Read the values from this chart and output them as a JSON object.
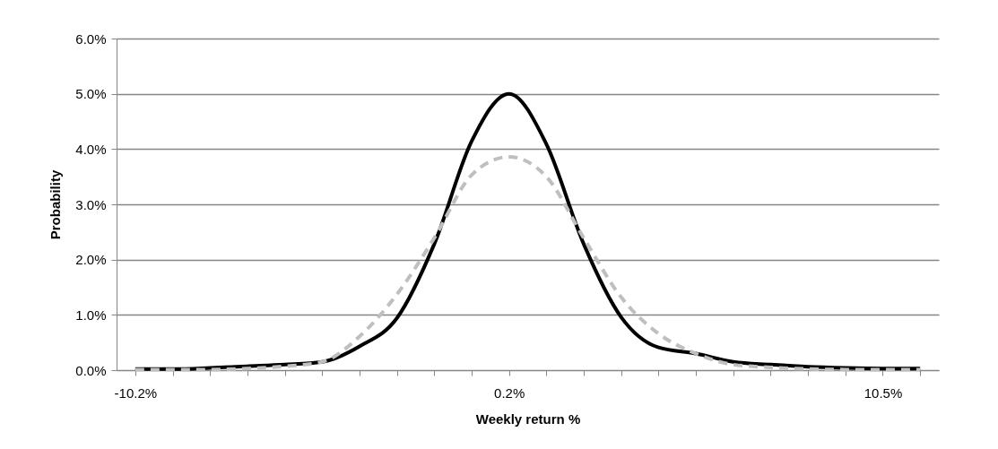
{
  "chart_data": {
    "type": "line",
    "xlabel": "Weekly return %",
    "ylabel": "Probability",
    "categories": [
      "-10.2%",
      null,
      null,
      null,
      null,
      null,
      null,
      null,
      null,
      null,
      "0.2%",
      null,
      null,
      null,
      null,
      null,
      null,
      null,
      null,
      null,
      "10.5%",
      null
    ],
    "series": [
      {
        "color": "#000000",
        "line_style": "solid",
        "values": [
          0.02,
          0.02,
          0.04,
          0.07,
          0.1,
          0.15,
          0.43,
          0.94,
          2.28,
          4.14,
          5.0,
          4.09,
          2.28,
          0.96,
          0.41,
          0.3,
          0.15,
          0.1,
          0.06,
          0.04,
          0.03,
          0.03
        ]
      },
      {
        "color": "#bfbfbf",
        "line_style": "dashed",
        "values": [
          0.01,
          0.01,
          0.01,
          0.03,
          0.07,
          0.15,
          0.61,
          1.37,
          2.39,
          3.53,
          3.86,
          3.5,
          2.39,
          1.32,
          0.66,
          0.3,
          0.1,
          0.05,
          0.02,
          0.01,
          0.01,
          0.01
        ]
      }
    ],
    "ylim": [
      0,
      6
    ],
    "yticks": [
      {
        "value": 0,
        "label": "0.0%"
      },
      {
        "value": 1,
        "label": "1.0%"
      },
      {
        "value": 2,
        "label": "2.0%"
      },
      {
        "value": 3,
        "label": "3.0%"
      },
      {
        "value": 4,
        "label": "4.0%"
      },
      {
        "value": 5,
        "label": "5.0%"
      },
      {
        "value": 6,
        "label": "6.0%"
      }
    ],
    "grid": "y",
    "marker": "none"
  }
}
